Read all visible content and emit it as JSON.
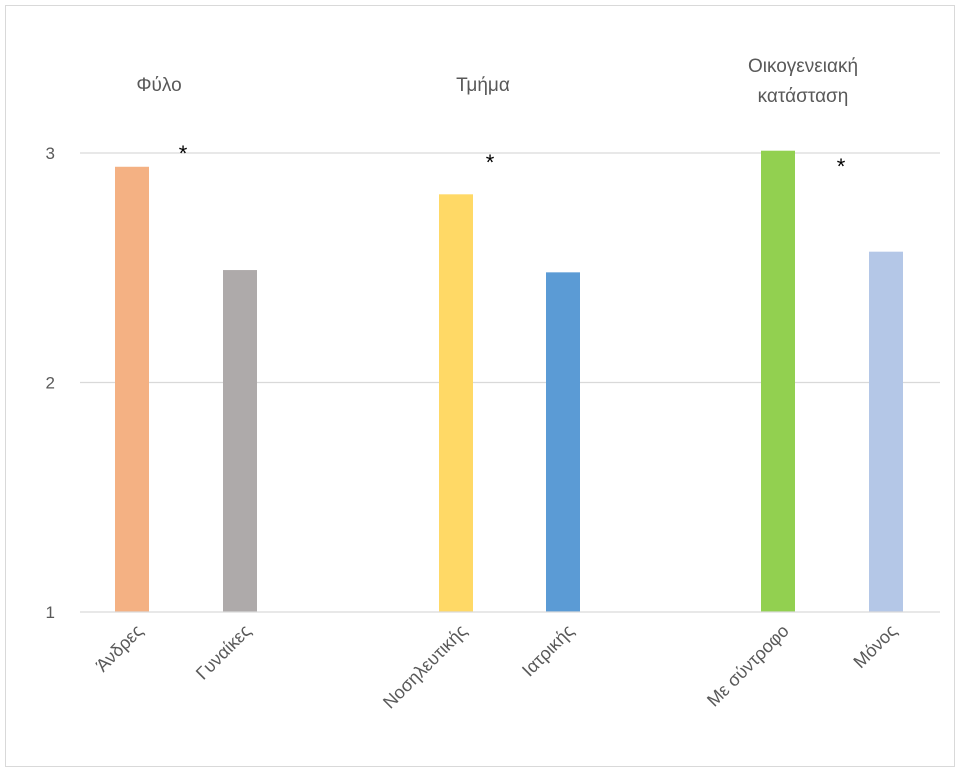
{
  "chart_data": {
    "type": "bar",
    "ylim": [
      1,
      3
    ],
    "yticks": [
      "1",
      "2",
      "3"
    ],
    "grid": true,
    "groups": [
      {
        "title_lines": [
          "Φύλο"
        ],
        "significance": "*",
        "bars": [
          {
            "label": "Άνδρες",
            "value": 2.94,
            "color": "#F4B183"
          },
          {
            "label": "Γυναίκες",
            "value": 2.49,
            "color": "#AEAAAA"
          }
        ]
      },
      {
        "title_lines": [
          "Τμήμα"
        ],
        "significance": "*",
        "bars": [
          {
            "label": "Νοσηλευτικής",
            "value": 2.82,
            "color": "#FFD966"
          },
          {
            "label": "Ιατρικής",
            "value": 2.48,
            "color": "#5B9BD5"
          }
        ]
      },
      {
        "title_lines": [
          "Οικογενειακή",
          "κατάσταση"
        ],
        "significance": "*",
        "bars": [
          {
            "label": "Με σύντροφο",
            "value": 3.01,
            "color": "#92D050"
          },
          {
            "label": "Μόνος",
            "value": 2.57,
            "color": "#B4C7E7"
          }
        ]
      }
    ]
  }
}
